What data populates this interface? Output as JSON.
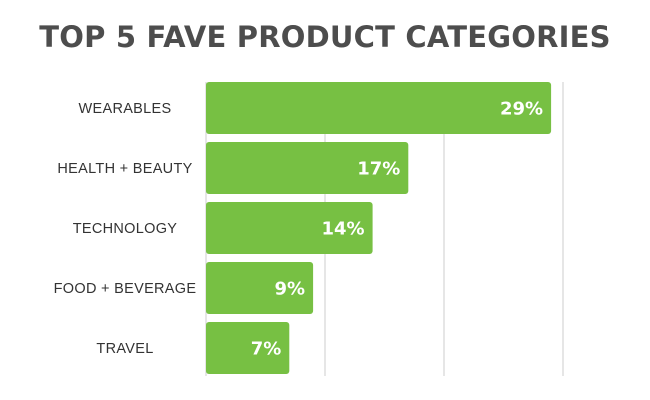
{
  "chart_data": {
    "type": "bar",
    "orientation": "horizontal",
    "title": "TOP 5 FAVE PRODUCT CATEGORIES",
    "categories": [
      "WEARABLES",
      "HEALTH + BEAUTY",
      "TECHNOLOGY",
      "FOOD + BEVERAGE",
      "TRAVEL"
    ],
    "values": [
      29,
      17,
      14,
      9,
      7
    ],
    "value_labels": [
      "29%",
      "17%",
      "14%",
      "9%",
      "7%"
    ],
    "xlim": [
      0,
      30
    ],
    "grid": true,
    "bar_color": "#77c043",
    "grid_color": "#cccccc"
  }
}
